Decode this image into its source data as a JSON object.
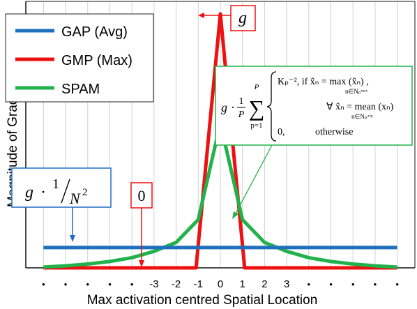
{
  "chart_data": {
    "type": "line",
    "ylabel": "Magnitude of Gradient",
    "xlabel": "Max activation centred Spatial Location",
    "x_tick_labels": [
      "•",
      "•",
      "•",
      "•",
      "•",
      "-3",
      "-2",
      "-1",
      "0",
      "1",
      "2",
      "3",
      "•",
      "•",
      "•",
      "•",
      "•"
    ],
    "x": [
      -8,
      -7,
      -6,
      -5,
      -4,
      -3,
      -2,
      -1,
      0,
      1,
      2,
      3,
      4,
      5,
      6,
      7,
      8
    ],
    "ylim": [
      0,
      1.0
    ],
    "grid": "vertical",
    "legend_position": "top-left",
    "series": [
      {
        "name": "GAP (Avg)",
        "color": "#1f6fbf",
        "points": [
          [
            -8,
            0.08
          ],
          [
            8,
            0.08
          ]
        ]
      },
      {
        "name": "GMP (Max)",
        "color": "#ee1111",
        "points": [
          [
            -8,
            0
          ],
          [
            -1.1,
            0
          ],
          [
            0,
            1.0
          ],
          [
            1.1,
            0
          ],
          [
            8,
            0
          ]
        ]
      },
      {
        "name": "SPAM",
        "color": "#21b24b",
        "points": [
          [
            -8,
            0.003
          ],
          [
            -7,
            0.008
          ],
          [
            -6,
            0.015
          ],
          [
            -5,
            0.025
          ],
          [
            -4,
            0.04
          ],
          [
            -3,
            0.065
          ],
          [
            -2,
            0.1
          ],
          [
            -1,
            0.19
          ],
          [
            0,
            0.57
          ],
          [
            1,
            0.19
          ],
          [
            2,
            0.1
          ],
          [
            3,
            0.065
          ],
          [
            4,
            0.04
          ],
          [
            5,
            0.025
          ],
          [
            6,
            0.015
          ],
          [
            7,
            0.008
          ],
          [
            8,
            0.003
          ]
        ]
      }
    ],
    "annotations": {
      "g_label": "g",
      "zero_label": "0",
      "gap_formula": {
        "g": "g",
        "dot": "·",
        "num": "1",
        "den": "N",
        "exp": "2"
      },
      "spam_formula": {
        "prefix_g": "g",
        "dot": "·",
        "frac_num": "1",
        "frac_den": "P",
        "sum_top": "P",
        "sum_symbol": "∑",
        "sum_bottom": "p=1",
        "case1": "Kₚ⁻², if x̂ₙ = max (x̂ₙ) ,",
        "case1_sub": "n∈Nₚᵐᵃˣ",
        "case2": "∀ x̂ₙ = mean (xₙ)",
        "case2_sub": "n∈Nₚᵃᵛᵍ",
        "case3_value": "0,",
        "case3_text": "otherwise"
      }
    }
  }
}
